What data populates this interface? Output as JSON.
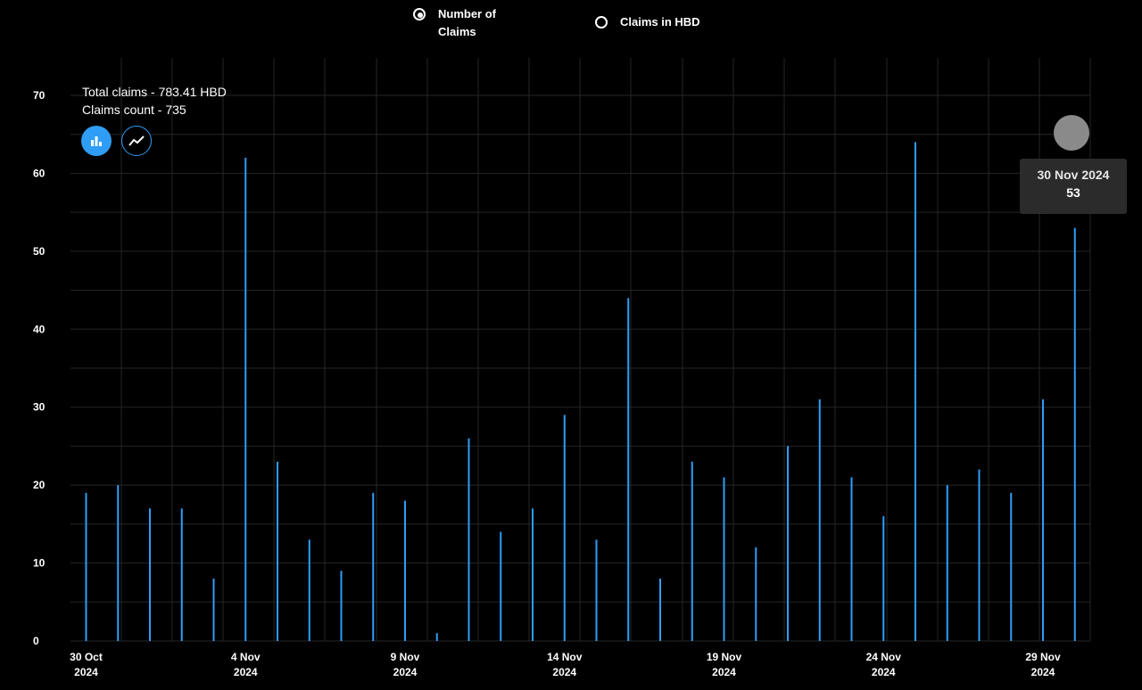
{
  "options": {
    "count_label": "Number of\nClaims",
    "hbd_label": "Claims in HBD",
    "selected": "count"
  },
  "summary": {
    "total_claims": "Total claims - 783.41 HBD",
    "claims_count": "Claims count - 735"
  },
  "tooltip": {
    "date": "30 Nov 2024",
    "value": "53"
  },
  "colors": {
    "bar": "#2f9df5",
    "grid": "#262626",
    "background": "#000000"
  },
  "icons": {
    "bar_toggle": "bar-chart-icon",
    "line_toggle": "line-chart-icon"
  },
  "chart_data": {
    "type": "bar",
    "x": [
      "2024-10-30",
      "2024-10-31",
      "2024-11-01",
      "2024-11-02",
      "2024-11-03",
      "2024-11-04",
      "2024-11-05",
      "2024-11-06",
      "2024-11-07",
      "2024-11-08",
      "2024-11-09",
      "2024-11-10",
      "2024-11-11",
      "2024-11-12",
      "2024-11-13",
      "2024-11-14",
      "2024-11-15",
      "2024-11-16",
      "2024-11-17",
      "2024-11-18",
      "2024-11-19",
      "2024-11-20",
      "2024-11-21",
      "2024-11-22",
      "2024-11-23",
      "2024-11-24",
      "2024-11-25",
      "2024-11-26",
      "2024-11-27",
      "2024-11-28",
      "2024-11-29",
      "2024-11-30"
    ],
    "values": [
      19,
      20,
      17,
      17,
      8,
      62,
      23,
      13,
      9,
      19,
      18,
      1,
      26,
      14,
      17,
      29,
      13,
      44,
      8,
      23,
      21,
      12,
      25,
      31,
      21,
      16,
      64,
      20,
      22,
      19,
      31,
      53
    ],
    "ylim": [
      0,
      70
    ],
    "yticks": [
      0,
      10,
      20,
      30,
      40,
      50,
      60,
      70
    ],
    "xtick_labels": [
      {
        "date": "2024-10-30",
        "line1": "30 Oct",
        "line2": "2024"
      },
      {
        "date": "2024-11-04",
        "line1": "4 Nov",
        "line2": "2024"
      },
      {
        "date": "2024-11-09",
        "line1": "9 Nov",
        "line2": "2024"
      },
      {
        "date": "2024-11-14",
        "line1": "14 Nov",
        "line2": "2024"
      },
      {
        "date": "2024-11-19",
        "line1": "19 Nov",
        "line2": "2024"
      },
      {
        "date": "2024-11-24",
        "line1": "24 Nov",
        "line2": "2024"
      },
      {
        "date": "2024-11-29",
        "line1": "29 Nov",
        "line2": "2024"
      }
    ],
    "grid": true
  }
}
